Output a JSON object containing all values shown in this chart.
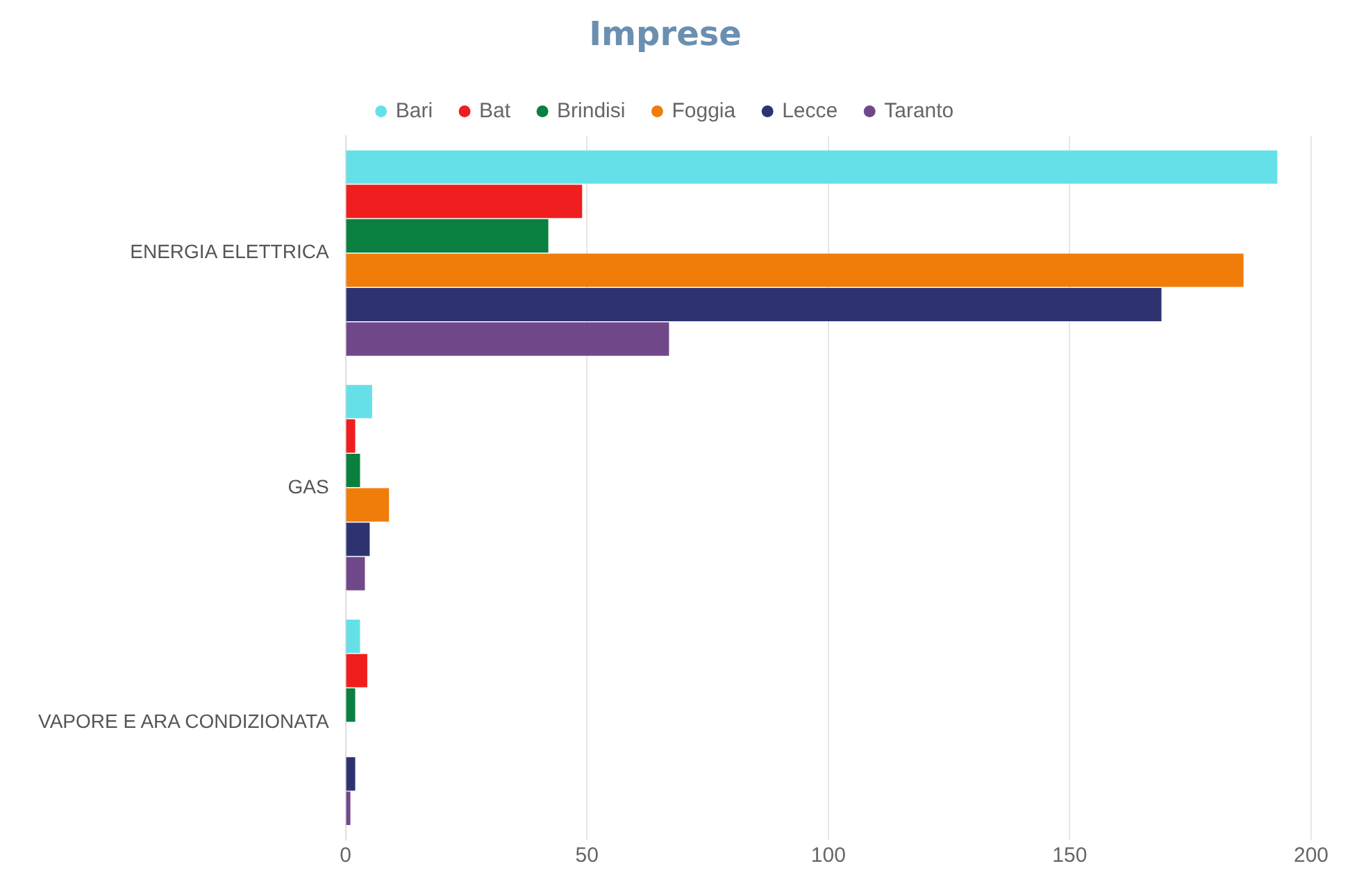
{
  "chart_data": {
    "type": "bar",
    "orientation": "horizontal",
    "title": "Imprese",
    "categories": [
      "ENERGIA ELETTRICA",
      "GAS",
      "VAPORE E ARA CONDIZIONATA"
    ],
    "series": [
      {
        "name": "Bari",
        "color": "#66e0e8",
        "values": [
          193,
          5.5,
          3
        ]
      },
      {
        "name": "Bat",
        "color": "#f01e1e",
        "values": [
          49,
          2,
          4.5
        ]
      },
      {
        "name": "Brindisi",
        "color": "#0a8040",
        "values": [
          42,
          3,
          2
        ]
      },
      {
        "name": "Foggia",
        "color": "#f07d0a",
        "values": [
          186,
          9,
          0
        ]
      },
      {
        "name": "Lecce",
        "color": "#2e3370",
        "values": [
          169,
          5,
          2
        ]
      },
      {
        "name": "Taranto",
        "color": "#70488a",
        "values": [
          67,
          4,
          1
        ]
      }
    ],
    "xlim": [
      0,
      200
    ],
    "xticks": [
      0,
      50,
      100,
      150,
      200
    ],
    "grid": "x",
    "legend": "top"
  }
}
